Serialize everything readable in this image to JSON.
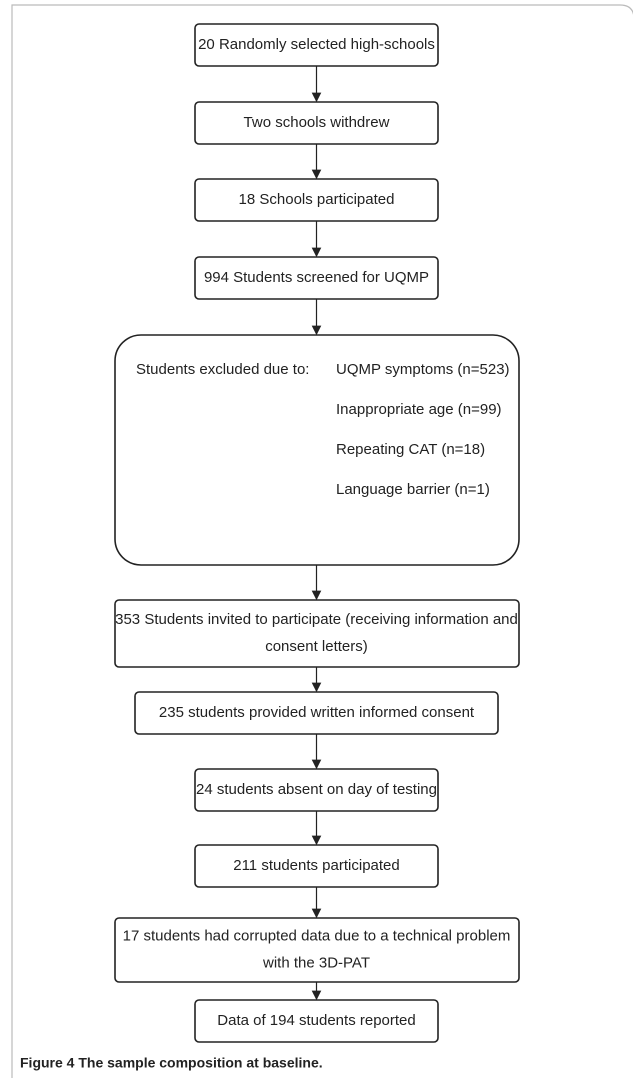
{
  "nodes": [
    {
      "lines": [
        "20 Randomly selected high-schools"
      ]
    },
    {
      "lines": [
        "Two schools withdrew"
      ]
    },
    {
      "lines": [
        "18 Schools participated"
      ]
    },
    {
      "lines": [
        "994 Students screened for UQMP"
      ]
    },
    {
      "label": "Students excluded due to:",
      "items": [
        "UQMP symptoms (n=523)",
        "Inappropriate age (n=99)",
        "Repeating CAT (n=18)",
        "Language barrier (n=1)"
      ]
    },
    {
      "lines": [
        "353 Students invited to participate (receiving information and",
        "consent letters)"
      ]
    },
    {
      "lines": [
        "235 students provided written informed consent"
      ]
    },
    {
      "lines": [
        "24 students absent on day of testing"
      ]
    },
    {
      "lines": [
        "211 students participated"
      ]
    },
    {
      "lines": [
        "17 students had corrupted data due to a technical problem",
        "with the 3D-PAT"
      ]
    },
    {
      "lines": [
        "Data of 194 students reported"
      ]
    }
  ],
  "caption": "Figure 4 The sample composition at baseline."
}
